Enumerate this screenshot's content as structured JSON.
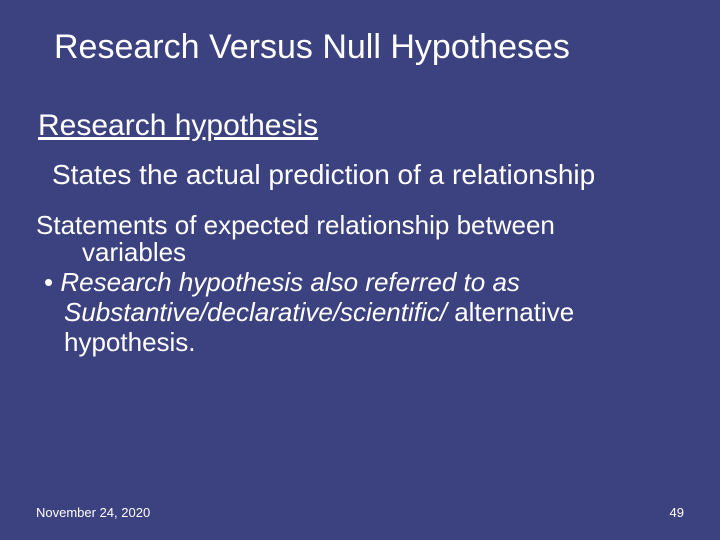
{
  "slide": {
    "background_color": "#3c4280",
    "text_color": "#ffffff",
    "title": "Research Versus Null Hypotheses",
    "title_fontsize": 34,
    "subhead": "Research hypothesis",
    "subhead_fontsize": 30,
    "subhead_underline": true,
    "lead": "States the actual prediction of a relationship",
    "lead_fontsize": 28,
    "body1_line1": "Statements of expected relationship between",
    "body1_line2": "variables",
    "body_fontsize": 26,
    "bullet_marker": "•",
    "bullet_italic_part": "Research hypothesis also referred to as Substantive/declarative/scientific/",
    "bullet_plain_part": " alternative hypothesis.",
    "footer": {
      "date": "November 24, 2020",
      "page": "49",
      "fontsize": 13
    }
  }
}
